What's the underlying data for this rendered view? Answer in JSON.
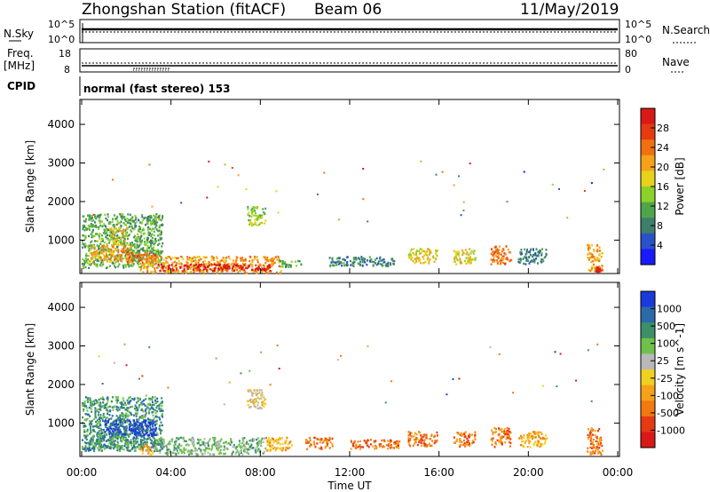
{
  "header": {
    "station": "Zhongshan Station (fitACF)",
    "beam": "Beam 06",
    "date": "11/May/2019"
  },
  "mini_panels": {
    "nsky_label": "N.Sky",
    "nsky_ticks": [
      "10^5",
      "10^0"
    ],
    "nsearch_label": "N.Search",
    "nsearch_ticks": [
      "10^5",
      "10^0"
    ],
    "freq_label_1": "Freq.",
    "freq_label_2": "[MHz]",
    "freq_ticks": [
      "18",
      "8"
    ],
    "nave_label": "Nave",
    "nave_ticks": [
      "80",
      "0"
    ],
    "cpid_label": "CPID",
    "cpid_text": "normal (fast stereo) 153"
  },
  "chart_data": [
    {
      "type": "heatmap",
      "title": "",
      "xlabel": "Time UT",
      "ylabel": "Slant Range [km]",
      "xlim_hours": [
        0,
        24
      ],
      "ylim_km": [
        180,
        4600
      ],
      "x_ticks": [
        "00:00",
        "04:00",
        "08:00",
        "12:00",
        "16:00",
        "20:00",
        "00:00"
      ],
      "y_ticks": [
        1000,
        2000,
        3000,
        4000
      ],
      "colorbar": {
        "label": "Power [dB]",
        "ticks": [
          "4",
          "8",
          "12",
          "16",
          "20",
          "24",
          "28"
        ],
        "colors": [
          "#1a1aff",
          "#2a52c8",
          "#3d7f6a",
          "#4fa64a",
          "#8cd12a",
          "#e6d21a",
          "#f5a21a",
          "#f07010",
          "#e63a12",
          "#d91818"
        ]
      },
      "regions": [
        {
          "t0": 0.0,
          "t1": 3.6,
          "r0": 300,
          "r1": 1700,
          "level": 3
        },
        {
          "t0": 0.3,
          "t1": 2.2,
          "r0": 450,
          "r1": 900,
          "level": 6
        },
        {
          "t0": 1.2,
          "t1": 2.0,
          "r0": 900,
          "r1": 1350,
          "level": 5
        },
        {
          "t0": 2.0,
          "t1": 3.3,
          "r0": 420,
          "r1": 700,
          "level": 7
        },
        {
          "t0": 2.6,
          "t1": 8.9,
          "r0": 180,
          "r1": 600,
          "level": 6
        },
        {
          "t0": 3.4,
          "t1": 8.4,
          "r0": 220,
          "r1": 400,
          "level": 9
        },
        {
          "t0": 8.8,
          "t1": 9.8,
          "r0": 300,
          "r1": 500,
          "level": 3
        },
        {
          "t0": 7.4,
          "t1": 8.2,
          "r0": 1400,
          "r1": 1900,
          "level": 4
        },
        {
          "t0": 11.0,
          "t1": 14.0,
          "r0": 350,
          "r1": 600,
          "level": 2
        },
        {
          "t0": 14.6,
          "t1": 15.9,
          "r0": 420,
          "r1": 800,
          "level": 5
        },
        {
          "t0": 16.6,
          "t1": 17.6,
          "r0": 400,
          "r1": 800,
          "level": 5
        },
        {
          "t0": 18.3,
          "t1": 19.2,
          "r0": 400,
          "r1": 900,
          "level": 7
        },
        {
          "t0": 19.5,
          "t1": 20.8,
          "r0": 400,
          "r1": 800,
          "level": 2
        },
        {
          "t0": 22.6,
          "t1": 23.3,
          "r0": 200,
          "r1": 900,
          "level": 6
        },
        {
          "t0": 22.9,
          "t1": 23.3,
          "r0": 180,
          "r1": 320,
          "level": 9
        }
      ]
    },
    {
      "type": "heatmap",
      "title": "",
      "xlabel": "Time UT",
      "ylabel": "Slant Range [km]",
      "xlim_hours": [
        0,
        24
      ],
      "ylim_km": [
        180,
        4600
      ],
      "x_ticks": [
        "00:00",
        "04:00",
        "08:00",
        "12:00",
        "16:00",
        "20:00",
        "00:00"
      ],
      "y_ticks": [
        1000,
        2000,
        3000,
        4000
      ],
      "colorbar": {
        "label": "Velocity [m s^-1]",
        "ticks": [
          "1000",
          "500",
          "100",
          "25",
          "-25",
          "-100",
          "-500",
          "-1000"
        ],
        "colors": [
          "#1a3adc",
          "#2a6aa8",
          "#3d8f6a",
          "#6ec24a",
          "#b8b8b8",
          "#f0d020",
          "#f5a21a",
          "#f07a10",
          "#e63a12",
          "#d91818"
        ]
      },
      "regions": [
        {
          "t0": 0.0,
          "t1": 3.6,
          "r0": 300,
          "r1": 1700,
          "level": 2
        },
        {
          "t0": 0.3,
          "t1": 2.8,
          "r0": 350,
          "r1": 700,
          "level": 2
        },
        {
          "t0": 1.0,
          "t1": 3.3,
          "r0": 700,
          "r1": 1100,
          "level": 0
        },
        {
          "t0": 2.6,
          "t1": 3.2,
          "r0": 200,
          "r1": 450,
          "level": 6
        },
        {
          "t0": 3.2,
          "t1": 8.2,
          "r0": 200,
          "r1": 650,
          "level": 3
        },
        {
          "t0": 7.4,
          "t1": 8.2,
          "r0": 1400,
          "r1": 1900,
          "level": 5
        },
        {
          "t0": 8.2,
          "t1": 9.4,
          "r0": 300,
          "r1": 650,
          "level": 6
        },
        {
          "t0": 10.0,
          "t1": 11.2,
          "r0": 350,
          "r1": 650,
          "level": 7
        },
        {
          "t0": 12.0,
          "t1": 14.2,
          "r0": 350,
          "r1": 600,
          "level": 7
        },
        {
          "t0": 14.6,
          "t1": 15.9,
          "r0": 420,
          "r1": 800,
          "level": 7
        },
        {
          "t0": 16.6,
          "t1": 17.6,
          "r0": 400,
          "r1": 800,
          "level": 7
        },
        {
          "t0": 18.3,
          "t1": 19.2,
          "r0": 400,
          "r1": 900,
          "level": 7
        },
        {
          "t0": 19.5,
          "t1": 20.8,
          "r0": 400,
          "r1": 800,
          "level": 6
        },
        {
          "t0": 22.6,
          "t1": 23.3,
          "r0": 200,
          "r1": 900,
          "level": 7
        }
      ]
    }
  ]
}
